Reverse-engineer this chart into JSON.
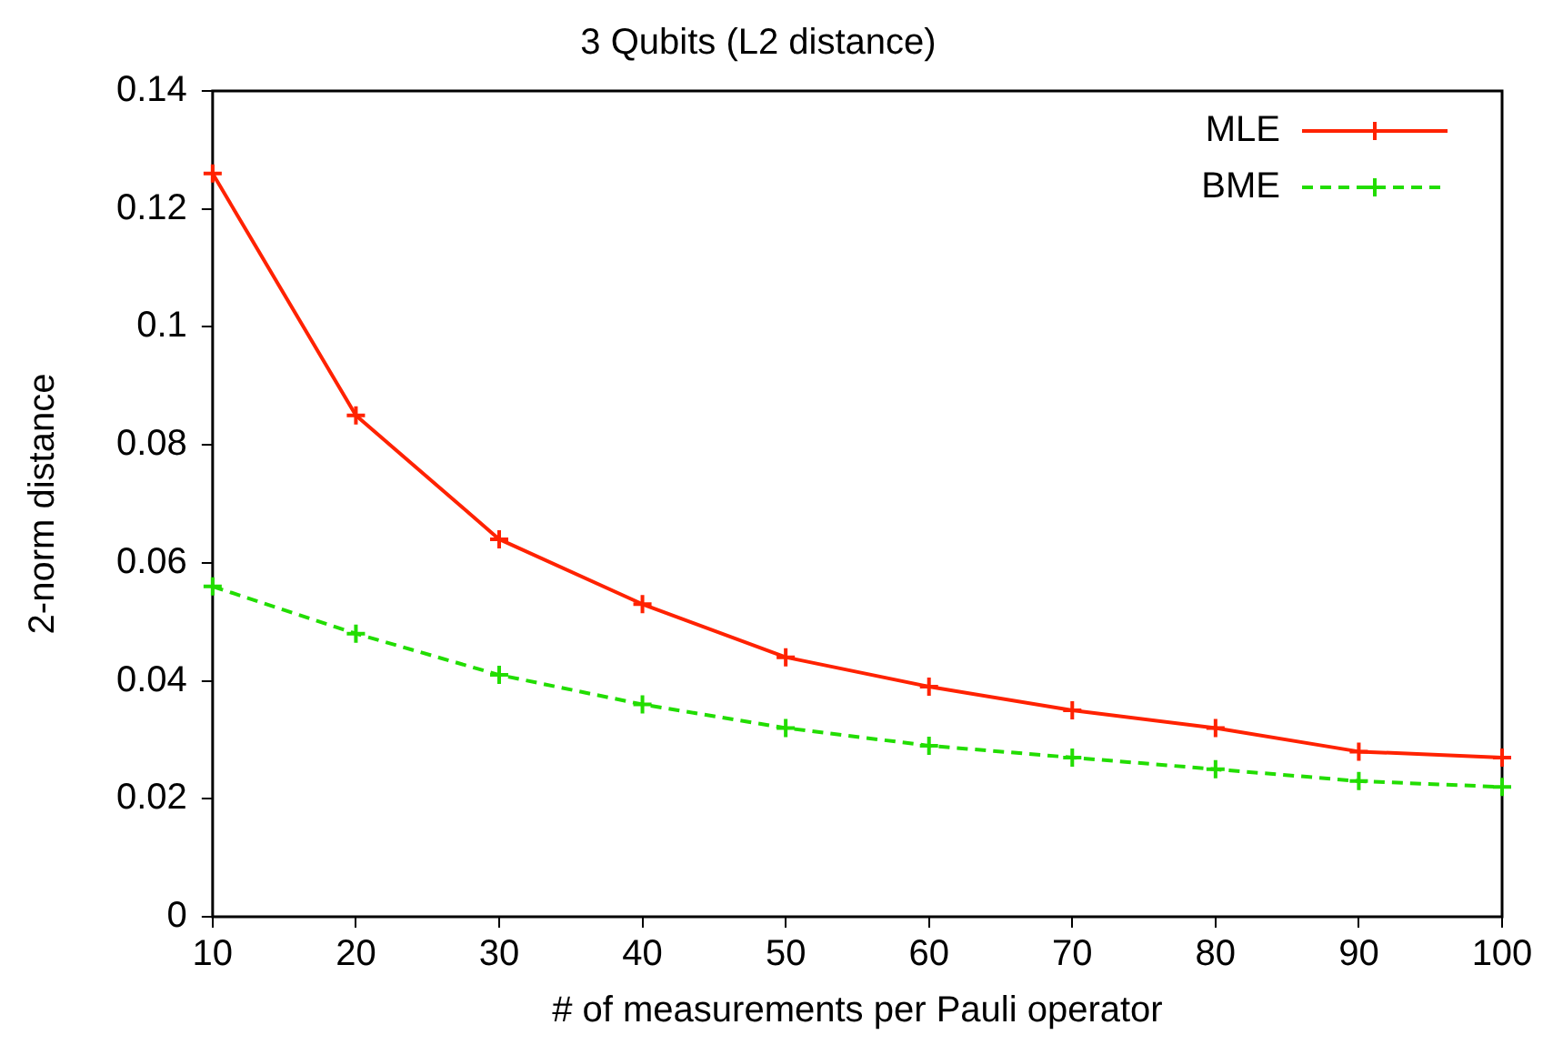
{
  "chart_data": {
    "type": "line",
    "title": "3 Qubits (L2 distance)",
    "xlabel": "# of measurements per Pauli operator",
    "ylabel": "2-norm distance",
    "x": [
      10,
      20,
      30,
      40,
      50,
      60,
      70,
      80,
      90,
      100
    ],
    "series": [
      {
        "name": "MLE",
        "color": "#ff2200",
        "line_style": "solid",
        "marker": "cross",
        "values": [
          0.126,
          0.085,
          0.064,
          0.053,
          0.044,
          0.039,
          0.035,
          0.032,
          0.028,
          0.027
        ]
      },
      {
        "name": "BME",
        "color": "#22dd00",
        "line_style": "dashed",
        "marker": "cross",
        "values": [
          0.056,
          0.048,
          0.041,
          0.036,
          0.032,
          0.029,
          0.027,
          0.025,
          0.023,
          0.022
        ]
      }
    ],
    "xlim": [
      10,
      100
    ],
    "xticks": [
      10,
      20,
      30,
      40,
      50,
      60,
      70,
      80,
      90,
      100
    ],
    "ylim": [
      0,
      0.14
    ],
    "yticks": [
      0,
      0.02,
      0.04,
      0.06,
      0.08,
      0.1,
      0.12,
      0.14
    ],
    "grid": false,
    "legend": "top right"
  }
}
